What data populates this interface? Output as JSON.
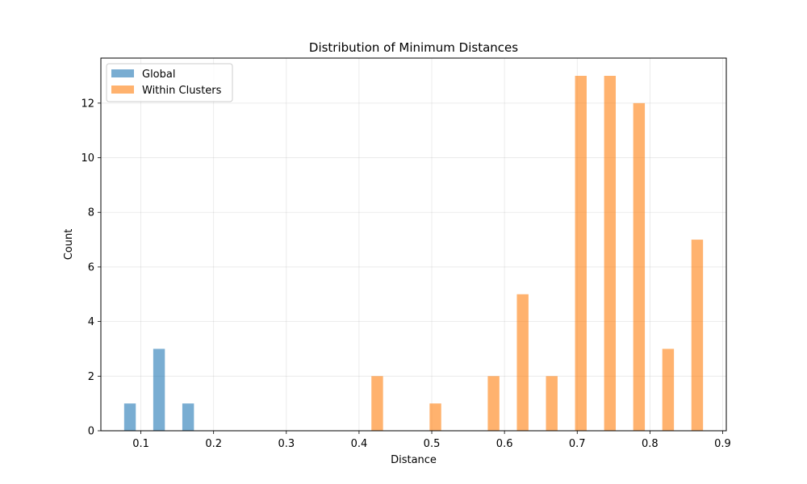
{
  "chart_data": {
    "type": "bar",
    "title": "Distribution of Minimum Distances",
    "xlabel": "Distance",
    "ylabel": "Count",
    "xlim": [
      0.045,
      0.905
    ],
    "ylim": [
      0,
      13.65
    ],
    "xticks": [
      0.1,
      0.2,
      0.3,
      0.4,
      0.5,
      0.6,
      0.7,
      0.8,
      0.9
    ],
    "yticks": [
      0,
      2,
      4,
      6,
      8,
      10,
      12
    ],
    "bar_width": 0.016,
    "grid": true,
    "legend_position": "upper left",
    "series": [
      {
        "name": "Global",
        "color": "#1f77b4",
        "opacity": 0.6,
        "x": [
          0.085,
          0.125,
          0.165
        ],
        "values": [
          1,
          3,
          1
        ]
      },
      {
        "name": "Within Clusters",
        "color": "#ff7f0e",
        "opacity": 0.6,
        "x": [
          0.425,
          0.505,
          0.585,
          0.625,
          0.665,
          0.705,
          0.745,
          0.785,
          0.825,
          0.865
        ],
        "values": [
          2,
          1,
          2,
          5,
          2,
          13,
          13,
          12,
          3,
          7
        ]
      }
    ]
  }
}
